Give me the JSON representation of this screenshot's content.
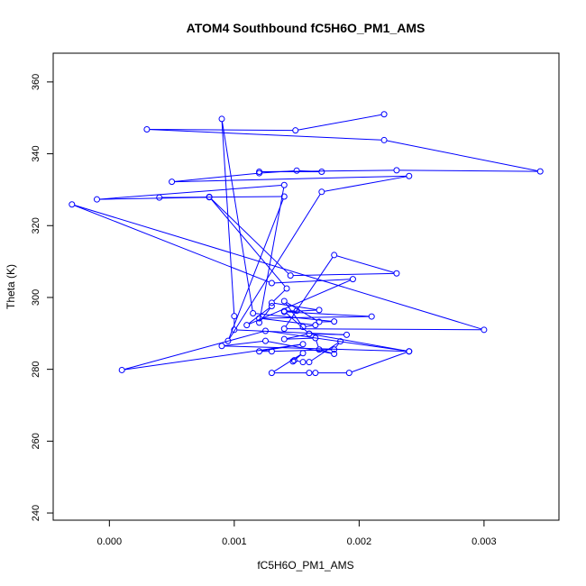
{
  "chart_data": {
    "type": "line",
    "title": "ATOM4 Southbound fC5H6O_PM1_AMS",
    "xlabel": "fC5H6O_PM1_AMS",
    "ylabel": "Theta (K)",
    "xlim": [
      -0.00045,
      0.0036
    ],
    "ylim": [
      238,
      368
    ],
    "xticks": [
      0.0,
      0.001,
      0.002,
      0.003
    ],
    "xtick_labels": [
      "0.000",
      "0.001",
      "0.002",
      "0.003"
    ],
    "yticks": [
      240,
      260,
      280,
      300,
      320,
      340,
      360
    ],
    "ytick_labels": [
      "240",
      "260",
      "280",
      "300",
      "320",
      "340",
      "360"
    ],
    "grid": false,
    "markers": "open-circle",
    "series": [
      {
        "color": "#0000ff",
        "points": [
          [
            0.0022,
            351.0
          ],
          [
            0.00149,
            346.5
          ],
          [
            0.0003,
            346.8
          ],
          [
            0.0022,
            343.8
          ],
          [
            0.00345,
            335.1
          ],
          [
            0.0023,
            335.4
          ],
          [
            0.0012,
            335.0
          ],
          [
            0.0017,
            335.0
          ],
          [
            0.0015,
            335.3
          ],
          [
            0.0012,
            334.6
          ],
          [
            0.0005,
            332.2
          ],
          [
            0.0024,
            333.8
          ],
          [
            0.0017,
            329.4
          ],
          [
            0.00095,
            287.9
          ],
          [
            0.0014,
            328.1
          ],
          [
            0.0004,
            327.8
          ],
          [
            0.0008,
            327.9
          ],
          [
            -0.0001,
            327.3
          ],
          [
            0.0014,
            331.3
          ],
          [
            0.0012,
            293.0
          ],
          [
            0.0013,
            297.6
          ],
          [
            0.0011,
            292.3
          ],
          [
            0.00195,
            305.1
          ],
          [
            0.0013,
            304.0
          ],
          [
            -0.0003,
            325.9
          ],
          [
            0.003,
            291.0
          ],
          [
            0.0014,
            291.3
          ],
          [
            0.0018,
            311.8
          ],
          [
            0.0023,
            306.7
          ],
          [
            0.00145,
            306.1
          ],
          [
            0.0008,
            328.0
          ],
          [
            0.00142,
            302.5
          ],
          [
            0.0013,
            298.5
          ],
          [
            0.00168,
            296.5
          ],
          [
            0.0014,
            296.0
          ],
          [
            0.0021,
            294.7
          ],
          [
            0.0012,
            294.2
          ],
          [
            0.00165,
            292.3
          ],
          [
            0.00155,
            291.8
          ],
          [
            0.0014,
            299.0
          ],
          [
            0.00168,
            293.2
          ],
          [
            0.0018,
            293.3
          ],
          [
            0.00115,
            295.6
          ],
          [
            0.0009,
            349.7
          ],
          [
            0.001,
            294.8
          ],
          [
            0.001,
            291.0
          ],
          [
            0.0019,
            289.6
          ],
          [
            0.0016,
            289.9
          ],
          [
            0.0014,
            288.4
          ],
          [
            0.00165,
            288.7
          ],
          [
            0.00168,
            285.5
          ],
          [
            0.0018,
            284.3
          ],
          [
            0.00125,
            287.9
          ],
          [
            0.0009,
            286.5
          ],
          [
            0.0024,
            285.0
          ],
          [
            0.00125,
            290.7
          ],
          [
            0.0001,
            279.8
          ],
          [
            0.00155,
            287.0
          ],
          [
            0.0012,
            285.0
          ],
          [
            0.0013,
            285.0
          ],
          [
            0.0018,
            285.5
          ],
          [
            0.00185,
            287.8
          ],
          [
            0.0016,
            282.0
          ],
          [
            0.00155,
            282.0
          ],
          [
            0.00148,
            282.5
          ],
          [
            0.00147,
            282.2
          ],
          [
            0.00155,
            284.5
          ],
          [
            0.0013,
            279.0
          ],
          [
            0.0016,
            279.0
          ],
          [
            0.00165,
            279.0
          ],
          [
            0.00192,
            279.0
          ],
          [
            0.0024,
            285.0
          ],
          [
            0.0016,
            289.9
          ],
          [
            0.0014,
            296.2
          ],
          [
            0.0015,
            296.3
          ]
        ]
      }
    ]
  }
}
